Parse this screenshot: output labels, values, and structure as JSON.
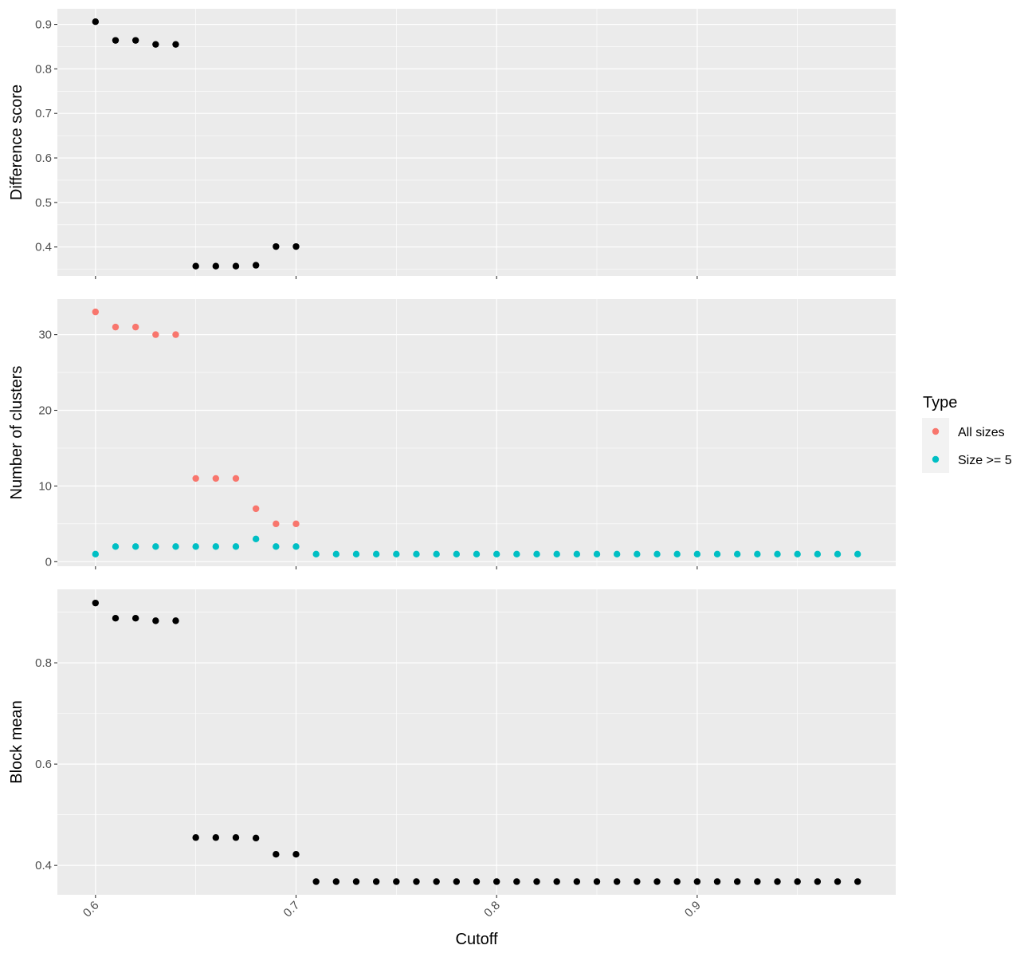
{
  "chart_data": [
    {
      "type": "scatter",
      "panel": "top",
      "title": "",
      "xlabel": "",
      "ylabel": "Difference score",
      "y_ticks": [
        0.4,
        0.5,
        0.6,
        0.7,
        0.8,
        0.9
      ],
      "y_tick_labels": [
        "0.4",
        "0.5",
        "0.6",
        "0.7",
        "0.8",
        "0.9"
      ],
      "ylim": [
        0.335,
        0.935
      ],
      "grid": true,
      "series": [
        {
          "color": "#000000",
          "x": [
            0.6,
            0.61,
            0.62,
            0.63,
            0.64,
            0.65,
            0.66,
            0.67,
            0.68,
            0.69,
            0.7
          ],
          "values": [
            0.906,
            0.864,
            0.864,
            0.855,
            0.855,
            0.357,
            0.357,
            0.357,
            0.359,
            0.401,
            0.401
          ]
        }
      ]
    },
    {
      "type": "scatter",
      "panel": "middle",
      "title": "",
      "xlabel": "",
      "ylabel": "Number of clusters",
      "y_ticks": [
        0,
        10,
        20,
        30
      ],
      "y_tick_labels": [
        "0",
        "10",
        "20",
        "30"
      ],
      "ylim": [
        -0.6,
        34.7
      ],
      "grid": true,
      "legend": {
        "title": "Type",
        "position": "right"
      },
      "series": [
        {
          "name": "All sizes",
          "color": "#F8766D",
          "x": [
            0.6,
            0.61,
            0.62,
            0.63,
            0.64,
            0.65,
            0.66,
            0.67,
            0.68,
            0.69,
            0.7
          ],
          "values": [
            33,
            31,
            31,
            30,
            30,
            11,
            11,
            11,
            7,
            5,
            5
          ]
        },
        {
          "name": "Size >= 5",
          "color": "#00BFC4",
          "x": [
            0.6,
            0.61,
            0.62,
            0.63,
            0.64,
            0.65,
            0.66,
            0.67,
            0.68,
            0.69,
            0.7,
            0.71,
            0.72,
            0.73,
            0.74,
            0.75,
            0.76,
            0.77,
            0.78,
            0.79,
            0.8,
            0.81,
            0.82,
            0.83,
            0.84,
            0.85,
            0.86,
            0.87,
            0.88,
            0.89,
            0.9,
            0.91,
            0.92,
            0.93,
            0.94,
            0.95,
            0.96,
            0.97,
            0.98
          ],
          "values": [
            1,
            2,
            2,
            2,
            2,
            2,
            2,
            2,
            3,
            2,
            2,
            1,
            1,
            1,
            1,
            1,
            1,
            1,
            1,
            1,
            1,
            1,
            1,
            1,
            1,
            1,
            1,
            1,
            1,
            1,
            1,
            1,
            1,
            1,
            1,
            1,
            1,
            1,
            1
          ]
        }
      ]
    },
    {
      "type": "scatter",
      "panel": "bottom",
      "title": "",
      "xlabel": "Cutoff",
      "ylabel": "Block mean",
      "x_ticks": [
        0.6,
        0.7,
        0.8,
        0.9
      ],
      "x_tick_labels": [
        "0.6",
        "0.7",
        "0.8",
        "0.9"
      ],
      "xlim": [
        0.581,
        0.999
      ],
      "y_ticks": [
        0.4,
        0.6,
        0.8
      ],
      "y_tick_labels": [
        "0.4",
        "0.6",
        "0.8"
      ],
      "ylim": [
        0.342,
        0.945
      ],
      "grid": true,
      "series": [
        {
          "color": "#000000",
          "x": [
            0.6,
            0.61,
            0.62,
            0.63,
            0.64,
            0.65,
            0.66,
            0.67,
            0.68,
            0.69,
            0.7,
            0.71,
            0.72,
            0.73,
            0.74,
            0.75,
            0.76,
            0.77,
            0.78,
            0.79,
            0.8,
            0.81,
            0.82,
            0.83,
            0.84,
            0.85,
            0.86,
            0.87,
            0.88,
            0.89,
            0.9,
            0.91,
            0.92,
            0.93,
            0.94,
            0.95,
            0.96,
            0.97,
            0.98
          ],
          "values": [
            0.918,
            0.888,
            0.888,
            0.883,
            0.883,
            0.455,
            0.455,
            0.455,
            0.454,
            0.422,
            0.422,
            0.368,
            0.368,
            0.368,
            0.368,
            0.368,
            0.368,
            0.368,
            0.368,
            0.368,
            0.368,
            0.368,
            0.368,
            0.368,
            0.368,
            0.368,
            0.368,
            0.368,
            0.368,
            0.368,
            0.368,
            0.368,
            0.368,
            0.368,
            0.368,
            0.368,
            0.368,
            0.368,
            0.368
          ]
        }
      ]
    }
  ],
  "colors": {
    "panel_background": "#EBEBEB",
    "grid": "#FFFFFF",
    "all_sizes": "#F8766D",
    "size_ge_5": "#00BFC4",
    "points": "#000000"
  }
}
